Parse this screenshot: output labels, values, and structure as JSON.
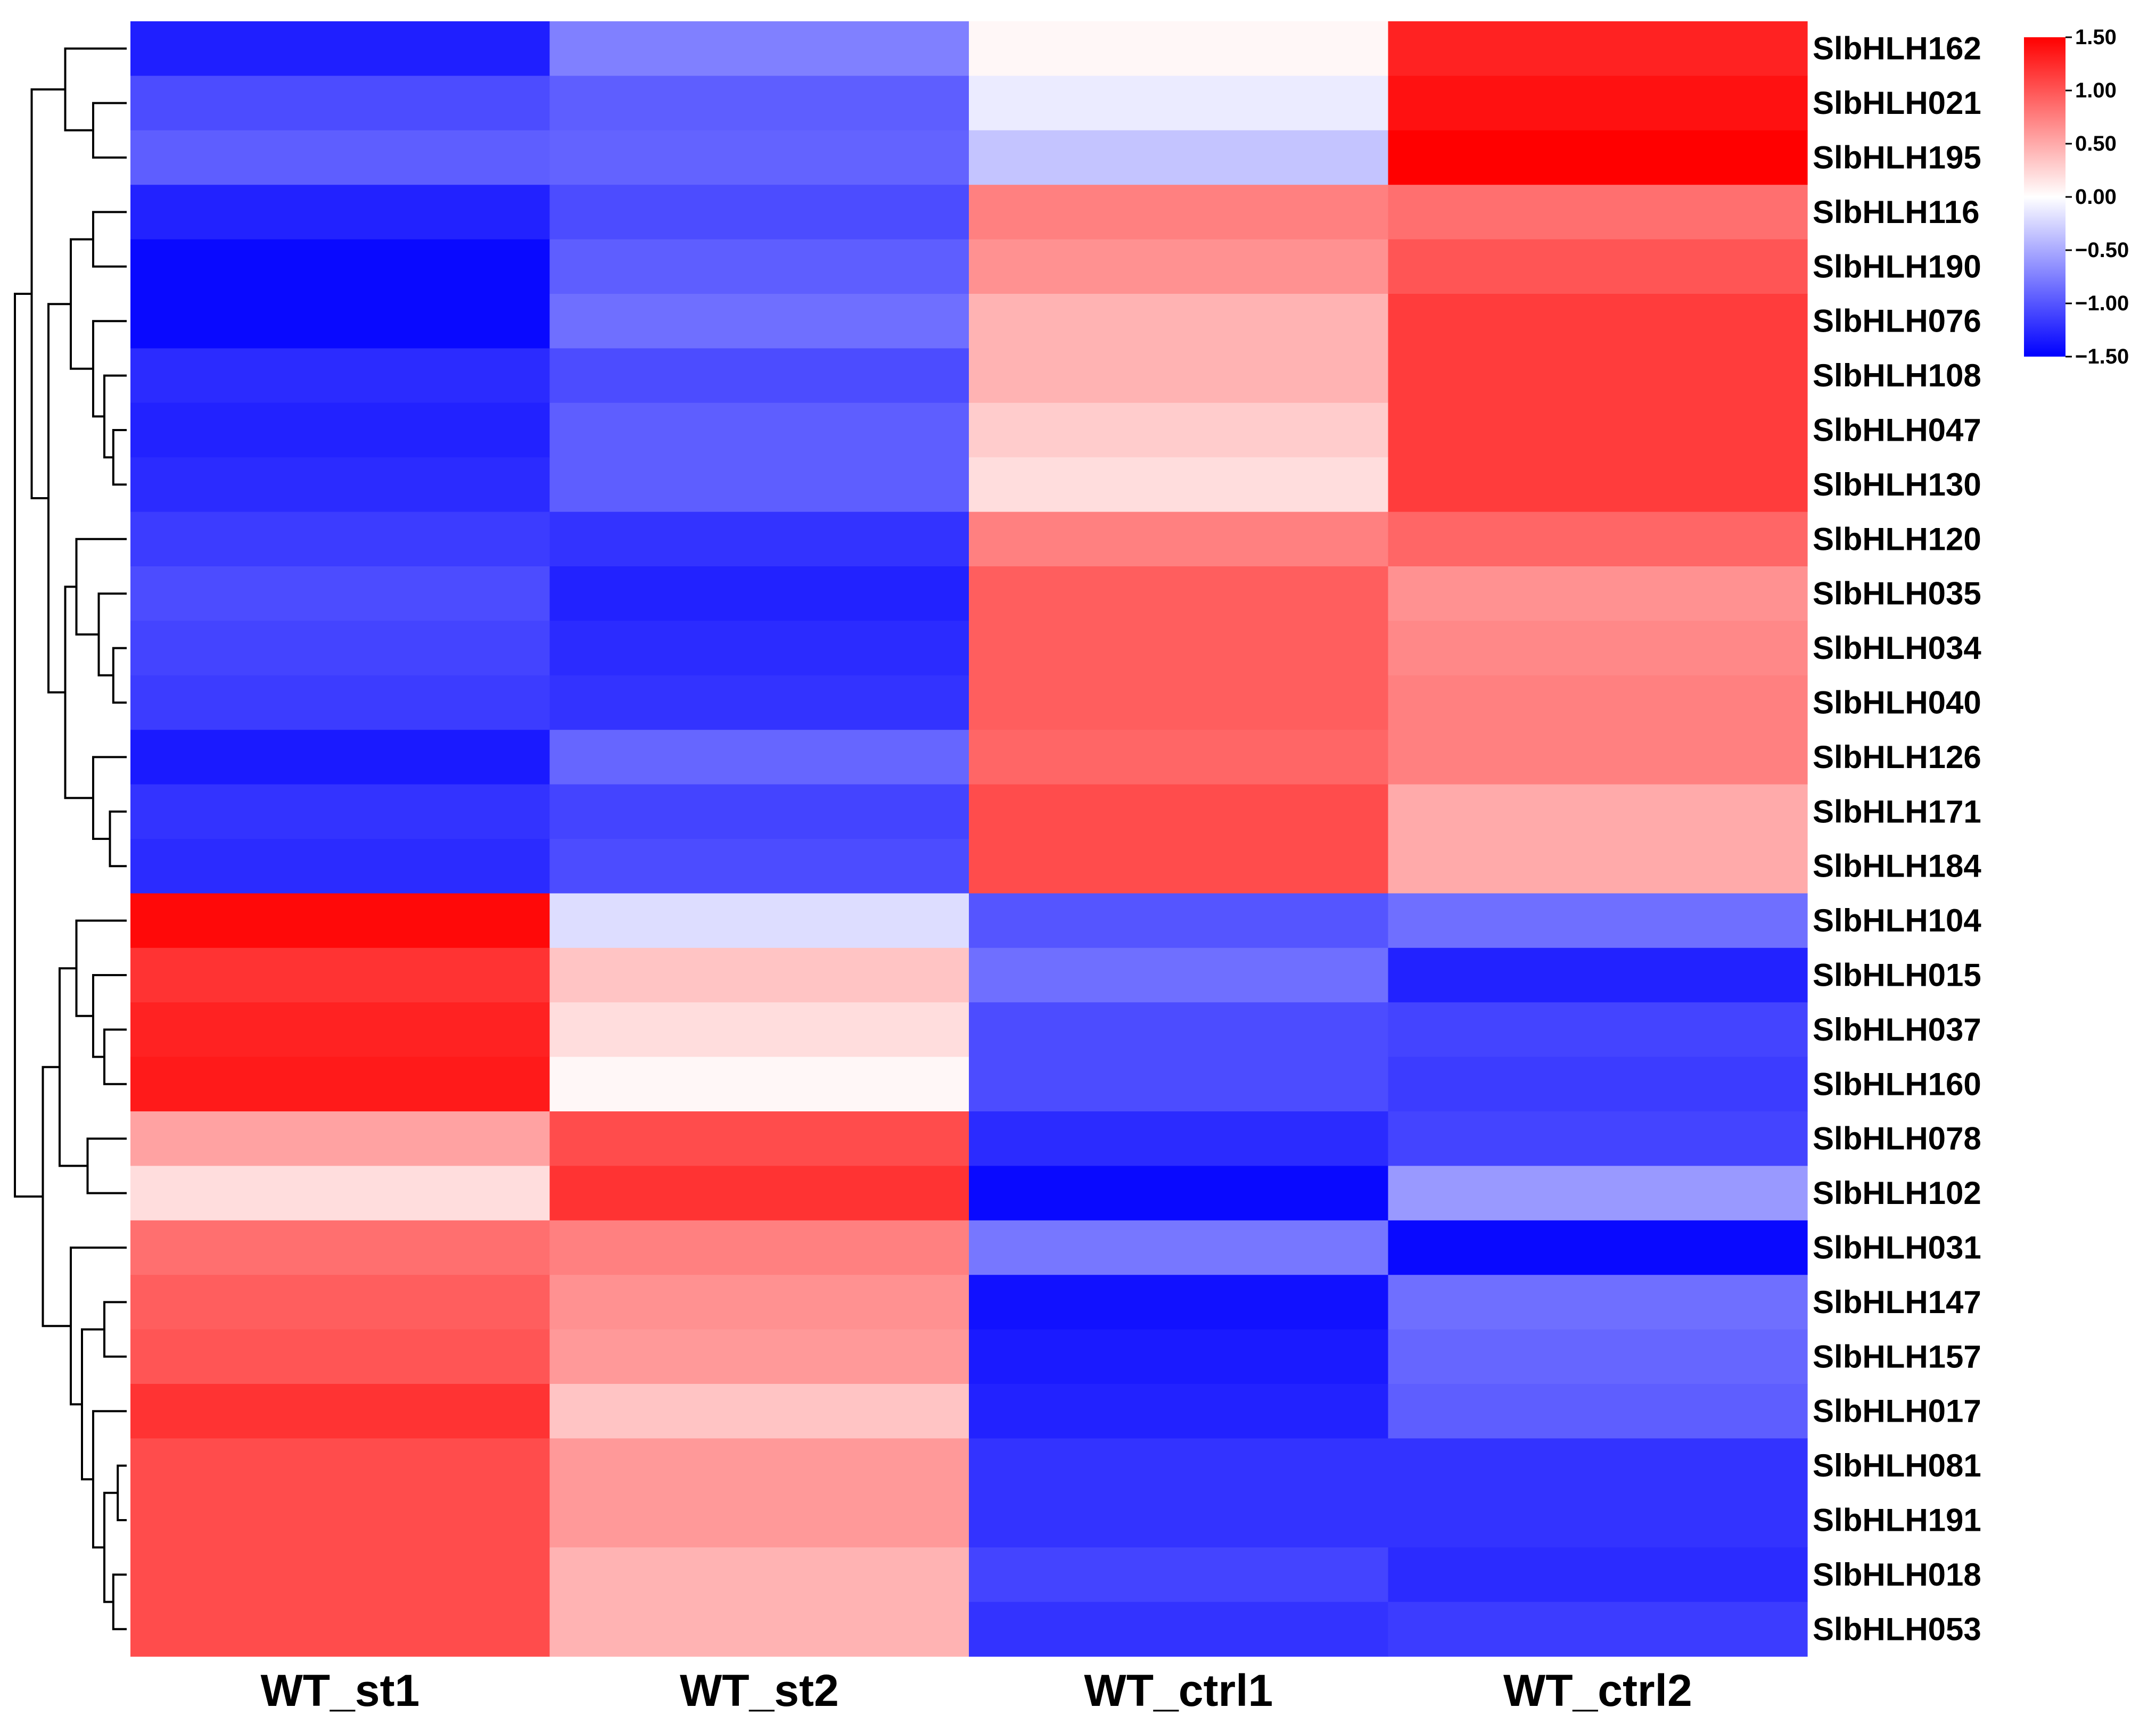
{
  "chart_data": {
    "type": "heatmap",
    "title": "",
    "xlabel": "",
    "ylabel": "",
    "columns": [
      "WT_st1",
      "WT_st2",
      "WT_ctrl1",
      "WT_ctrl2"
    ],
    "rows": [
      "SlbHLH162",
      "SlbHLH021",
      "SlbHLH195",
      "SlbHLH116",
      "SlbHLH190",
      "SlbHLH076",
      "SlbHLH108",
      "SlbHLH047",
      "SlbHLH130",
      "SlbHLH120",
      "SlbHLH035",
      "SlbHLH034",
      "SlbHLH040",
      "SlbHLH126",
      "SlbHLH171",
      "SlbHLH184",
      "SlbHLH104",
      "SlbHLH015",
      "SlbHLH037",
      "SlbHLH160",
      "SlbHLH078",
      "SlbHLH102",
      "SlbHLH031",
      "SlbHLH147",
      "SlbHLH157",
      "SlbHLH017",
      "SlbHLH081",
      "SlbHLH191",
      "SlbHLH018",
      "SlbHLH053"
    ],
    "values": [
      [
        -1.32,
        -0.75,
        0.05,
        1.3
      ],
      [
        -1.05,
        -0.95,
        -0.12,
        1.4
      ],
      [
        -0.95,
        -0.92,
        -0.35,
        1.5
      ],
      [
        -1.3,
        -1.05,
        0.75,
        0.85
      ],
      [
        -1.45,
        -0.95,
        0.65,
        1.0
      ],
      [
        -1.45,
        -0.85,
        0.45,
        1.15
      ],
      [
        -1.25,
        -1.05,
        0.45,
        1.15
      ],
      [
        -1.3,
        -0.95,
        0.3,
        1.15
      ],
      [
        -1.25,
        -0.95,
        0.2,
        1.15
      ],
      [
        -1.15,
        -1.2,
        0.75,
        0.9
      ],
      [
        -1.05,
        -1.3,
        0.95,
        0.65
      ],
      [
        -1.1,
        -1.25,
        0.95,
        0.7
      ],
      [
        -1.15,
        -1.2,
        0.95,
        0.75
      ],
      [
        -1.35,
        -0.9,
        0.9,
        0.75
      ],
      [
        -1.2,
        -1.1,
        1.05,
        0.5
      ],
      [
        -1.25,
        -1.05,
        1.05,
        0.5
      ],
      [
        1.45,
        -0.2,
        -1.0,
        -0.85
      ],
      [
        1.2,
        0.35,
        -0.85,
        -1.3
      ],
      [
        1.3,
        0.2,
        -1.05,
        -1.1
      ],
      [
        1.35,
        0.05,
        -1.05,
        -1.15
      ],
      [
        0.55,
        1.05,
        -1.25,
        -1.1
      ],
      [
        0.2,
        1.2,
        -1.45,
        -0.6
      ],
      [
        0.85,
        0.75,
        -0.8,
        -1.45
      ],
      [
        0.95,
        0.65,
        -1.4,
        -0.85
      ],
      [
        1.0,
        0.6,
        -1.35,
        -0.9
      ],
      [
        1.2,
        0.35,
        -1.3,
        -0.95
      ],
      [
        1.05,
        0.6,
        -1.2,
        -1.2
      ],
      [
        1.05,
        0.6,
        -1.2,
        -1.2
      ],
      [
        1.05,
        0.45,
        -1.1,
        -1.25
      ],
      [
        1.05,
        0.45,
        -1.2,
        -1.15
      ]
    ],
    "color_scale": {
      "min": -1.5,
      "max": 1.5,
      "low_color": "#0000ff",
      "mid_color": "#ffffff",
      "high_color": "#ff0000",
      "tick_labels": [
        "1.50",
        "1.00",
        "0.50",
        "0.00",
        "−0.50",
        "−1.00",
        "−1.50"
      ]
    },
    "dendrogram": "rows clustered (left side)"
  }
}
